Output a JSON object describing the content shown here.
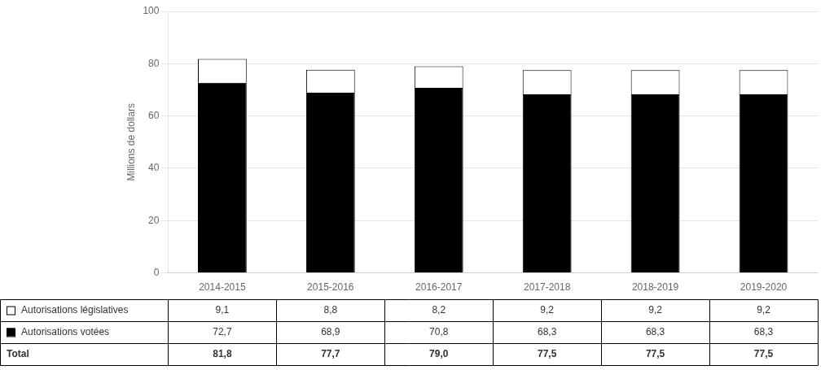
{
  "chart_data": {
    "type": "bar",
    "ylabel": "Millions de dollars",
    "categories": [
      "2014-2015",
      "2015-2016",
      "2016-2017",
      "2017-2018",
      "2018-2019",
      "2019-2020"
    ],
    "series": [
      {
        "name": "Autorisations votées",
        "color": "#000000",
        "values": [
          72.7,
          68.9,
          70.8,
          68.3,
          68.3,
          68.3
        ],
        "value_labels": [
          "72,7",
          "68,9",
          "70,8",
          "68,3",
          "68,3",
          "68,3"
        ]
      },
      {
        "name": "Autorisations législatives",
        "color": "#ffffff",
        "values": [
          9.1,
          8.8,
          8.2,
          9.2,
          9.2,
          9.2
        ],
        "value_labels": [
          "9,1",
          "8,8",
          "8,2",
          "9,2",
          "9,2",
          "9,2"
        ]
      }
    ],
    "totals": {
      "name": "Total",
      "values": [
        81.8,
        77.7,
        79.0,
        77.5,
        77.5,
        77.5
      ],
      "value_labels": [
        "81,8",
        "77,7",
        "79,0",
        "77,5",
        "77,5",
        "77,5"
      ]
    },
    "ylim": [
      0,
      100
    ],
    "yticks": [
      0,
      20,
      40,
      60,
      80,
      100
    ],
    "grid": true,
    "stacked": true
  }
}
